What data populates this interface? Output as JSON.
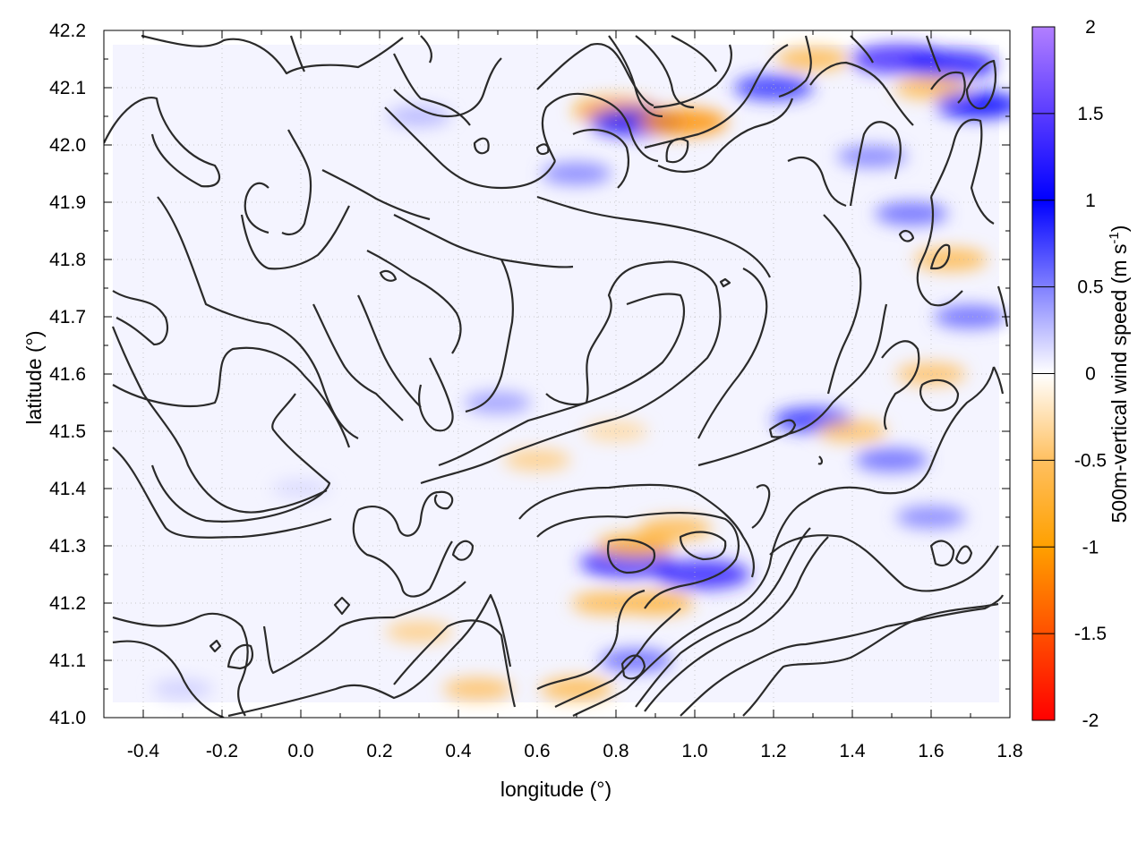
{
  "chart_data": {
    "type": "heatmap",
    "title": "",
    "xlabel": "longitude (°)",
    "ylabel": "latitude (°)",
    "colorbar_label_main": "500m-vertical wind speed (m s",
    "colorbar_label_sup": "-1",
    "colorbar_label_close": ")",
    "xlim": [
      -0.5,
      1.8
    ],
    "ylim": [
      41.0,
      42.2
    ],
    "x_ticks": [
      -0.4,
      -0.2,
      0.0,
      0.2,
      0.4,
      0.6,
      0.8,
      1.0,
      1.2,
      1.4,
      1.6,
      1.8
    ],
    "x_tick_labels": [
      "-0.4",
      "-0.2",
      "0.0",
      "0.2",
      "0.4",
      "0.6",
      "0.8",
      "1.0",
      "1.2",
      "1.4",
      "1.6",
      "1.8"
    ],
    "y_ticks": [
      41.0,
      41.1,
      41.2,
      41.3,
      41.4,
      41.5,
      41.6,
      41.7,
      41.8,
      41.9,
      42.0,
      42.1,
      42.2
    ],
    "y_tick_labels": [
      "41.0",
      "41.1",
      "41.2",
      "41.3",
      "41.4",
      "41.5",
      "41.6",
      "41.7",
      "41.8",
      "41.9",
      "42.0",
      "42.1",
      "42.2"
    ],
    "colorbar_range": [
      -2,
      2
    ],
    "colorbar_ticks": [
      2,
      1.5,
      1,
      0.5,
      0,
      -0.5,
      -1,
      -1.5,
      -2
    ],
    "colorbar_tick_labels": [
      "2",
      "1.5",
      "1",
      "0.5",
      "0",
      "-0.5",
      "-1",
      "-1.5",
      "-2"
    ],
    "colormap": [
      {
        "value": 2.0,
        "color": "#b27fff"
      },
      {
        "value": 1.5,
        "color": "#5a3cff"
      },
      {
        "value": 1.0,
        "color": "#0000ff"
      },
      {
        "value": 0.5,
        "color": "#8080ff"
      },
      {
        "value": 0.0,
        "color": "#ffffff"
      },
      {
        "value": -0.5,
        "color": "#ffc060"
      },
      {
        "value": -1.0,
        "color": "#ffa000"
      },
      {
        "value": -1.5,
        "color": "#ff5000"
      },
      {
        "value": -2.0,
        "color": "#ff0000"
      }
    ],
    "grid": true,
    "contour_color": "#2a2a2a",
    "wind_features": [
      {
        "lon": 0.8,
        "lat": 42.06,
        "speed": -1.0
      },
      {
        "lon": 0.85,
        "lat": 42.04,
        "speed": 1.2
      },
      {
        "lon": 0.97,
        "lat": 42.04,
        "speed": -1.1
      },
      {
        "lon": 1.52,
        "lat": 42.15,
        "speed": 1.4
      },
      {
        "lon": 1.65,
        "lat": 42.14,
        "speed": 1.2
      },
      {
        "lon": 1.3,
        "lat": 42.15,
        "speed": -0.6
      },
      {
        "lon": 1.6,
        "lat": 42.1,
        "speed": -0.6
      },
      {
        "lon": 1.72,
        "lat": 42.07,
        "speed": 1.0
      },
      {
        "lon": 1.2,
        "lat": 42.1,
        "speed": 0.8
      },
      {
        "lon": 1.45,
        "lat": 41.98,
        "speed": 0.5
      },
      {
        "lon": 1.55,
        "lat": 41.88,
        "speed": 0.6
      },
      {
        "lon": 1.65,
        "lat": 41.8,
        "speed": -0.6
      },
      {
        "lon": 1.7,
        "lat": 41.7,
        "speed": 0.6
      },
      {
        "lon": 1.6,
        "lat": 41.6,
        "speed": -0.5
      },
      {
        "lon": 1.3,
        "lat": 41.52,
        "speed": 0.8
      },
      {
        "lon": 1.4,
        "lat": 41.5,
        "speed": -0.5
      },
      {
        "lon": 1.5,
        "lat": 41.45,
        "speed": 0.6
      },
      {
        "lon": 1.6,
        "lat": 41.35,
        "speed": 0.5
      },
      {
        "lon": 0.83,
        "lat": 41.27,
        "speed": 1.3
      },
      {
        "lon": 1.02,
        "lat": 41.25,
        "speed": 1.3
      },
      {
        "lon": 0.85,
        "lat": 41.3,
        "speed": -0.8
      },
      {
        "lon": 0.95,
        "lat": 41.33,
        "speed": -0.6
      },
      {
        "lon": 0.9,
        "lat": 41.2,
        "speed": -0.7
      },
      {
        "lon": 0.78,
        "lat": 41.2,
        "speed": -0.6
      },
      {
        "lon": 0.85,
        "lat": 41.1,
        "speed": 0.6
      },
      {
        "lon": 0.7,
        "lat": 41.05,
        "speed": -0.6
      },
      {
        "lon": 0.45,
        "lat": 41.05,
        "speed": -0.5
      },
      {
        "lon": 0.3,
        "lat": 41.15,
        "speed": -0.4
      },
      {
        "lon": 0.6,
        "lat": 41.45,
        "speed": -0.4
      },
      {
        "lon": 0.8,
        "lat": 41.5,
        "speed": -0.3
      },
      {
        "lon": 0.5,
        "lat": 41.55,
        "speed": 0.4
      },
      {
        "lon": 0.7,
        "lat": 41.95,
        "speed": 0.5
      },
      {
        "lon": 0.3,
        "lat": 42.05,
        "speed": 0.3
      },
      {
        "lon": -0.3,
        "lat": 41.05,
        "speed": 0.2
      },
      {
        "lon": 0.0,
        "lat": 41.4,
        "speed": 0.15
      }
    ]
  }
}
